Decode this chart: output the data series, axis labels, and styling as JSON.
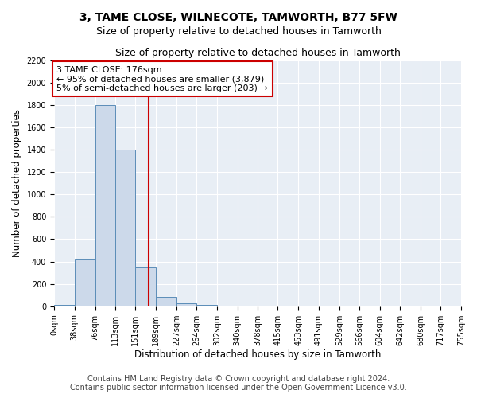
{
  "title": "3, TAME CLOSE, WILNECOTE, TAMWORTH, B77 5FW",
  "subtitle": "Size of property relative to detached houses in Tamworth",
  "xlabel": "Distribution of detached houses by size in Tamworth",
  "ylabel": "Number of detached properties",
  "bin_edges": [
    0,
    38,
    76,
    113,
    151,
    189,
    227,
    264,
    302,
    340,
    378,
    415,
    453,
    491,
    529,
    566,
    604,
    642,
    680,
    717,
    755
  ],
  "bar_heights": [
    15,
    420,
    1800,
    1400,
    350,
    80,
    30,
    15,
    0,
    0,
    0,
    0,
    0,
    0,
    0,
    0,
    0,
    0,
    0,
    0
  ],
  "bar_color": "#ccd9ea",
  "bar_edge_color": "#5b8db8",
  "vline_x": 176,
  "vline_color": "#cc0000",
  "annotation_text": "3 TAME CLOSE: 176sqm\n← 95% of detached houses are smaller (3,879)\n5% of semi-detached houses are larger (203) →",
  "annotation_box_color": "#ffffff",
  "annotation_box_edge_color": "#cc0000",
  "ylim": [
    0,
    2200
  ],
  "yticks": [
    0,
    200,
    400,
    600,
    800,
    1000,
    1200,
    1400,
    1600,
    1800,
    2000,
    2200
  ],
  "tick_labels": [
    "0sqm",
    "38sqm",
    "76sqm",
    "113sqm",
    "151sqm",
    "189sqm",
    "227sqm",
    "264sqm",
    "302sqm",
    "340sqm",
    "378sqm",
    "415sqm",
    "453sqm",
    "491sqm",
    "529sqm",
    "566sqm",
    "604sqm",
    "642sqm",
    "680sqm",
    "717sqm",
    "755sqm"
  ],
  "background_color": "#e8eef5",
  "footer_line1": "Contains HM Land Registry data © Crown copyright and database right 2024.",
  "footer_line2": "Contains public sector information licensed under the Open Government Licence v3.0.",
  "title_fontsize": 10,
  "subtitle_fontsize": 9,
  "axis_label_fontsize": 8.5,
  "tick_fontsize": 7,
  "footer_fontsize": 7,
  "annotation_fontsize": 8
}
